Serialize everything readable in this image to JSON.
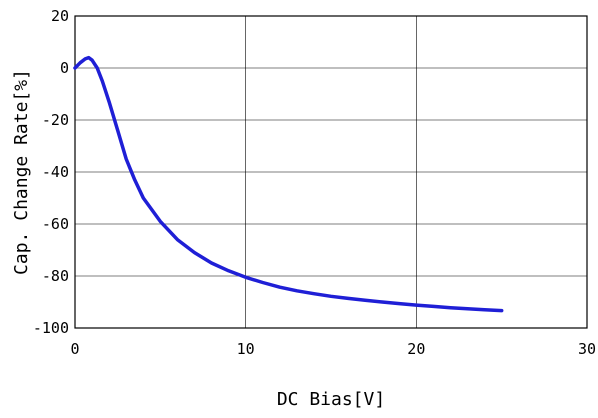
{
  "chart_data": {
    "type": "line",
    "title": "",
    "xlabel": "DC Bias[V]",
    "ylabel": "Cap.  Change Rate[%]",
    "xlim": [
      0,
      30
    ],
    "ylim": [
      -100,
      20
    ],
    "xticks": [
      "0",
      "10",
      "20",
      "30"
    ],
    "yticks": [
      "20",
      "0",
      "-20",
      "-40",
      "-60",
      "-80",
      "-100"
    ],
    "grid": true,
    "colors": {
      "series": "#1f1fd6",
      "grid": "#000000"
    },
    "series": [
      {
        "x": [
          0,
          0.3,
          0.6,
          0.8,
          1.0,
          1.3,
          1.6,
          2.0,
          2.5,
          3.0,
          3.5,
          4.0,
          5.0,
          6.0,
          7.0,
          8.0,
          9.0,
          10.0,
          11.0,
          12.0,
          13.0,
          14.0,
          15.0,
          16.0,
          17.0,
          18.0,
          19.0,
          20.0,
          21.0,
          22.0,
          23.0,
          24.0,
          25.0
        ],
        "y": [
          0,
          2,
          3.5,
          4,
          3,
          0,
          -5,
          -13,
          -24,
          -35,
          -43,
          -50,
          -59,
          -66,
          -71,
          -75,
          -78,
          -80.5,
          -82.5,
          -84.3,
          -85.7,
          -86.8,
          -87.8,
          -88.6,
          -89.3,
          -90,
          -90.6,
          -91.2,
          -91.7,
          -92.2,
          -92.6,
          -93,
          -93.3
        ]
      }
    ]
  }
}
